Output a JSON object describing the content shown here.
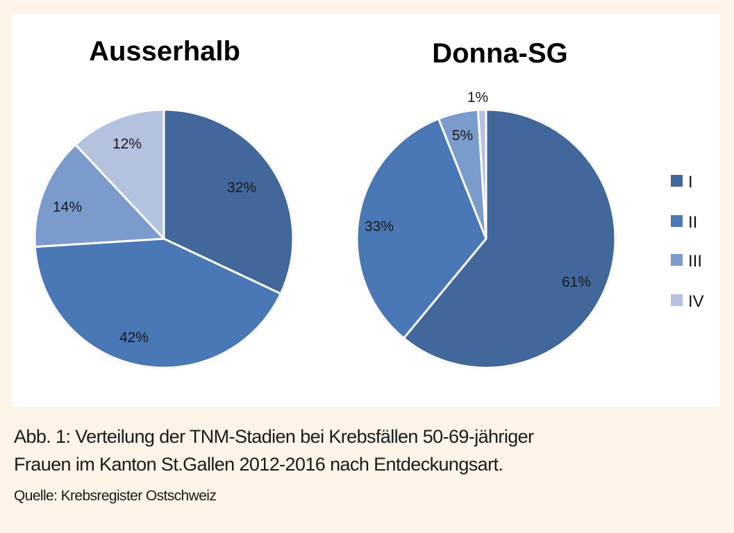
{
  "chart_data": [
    {
      "type": "pie",
      "title": "Ausserhalb",
      "categories": [
        "I",
        "II",
        "III",
        "IV"
      ],
      "values": [
        32,
        42,
        14,
        12
      ],
      "labels": [
        "32%",
        "42%",
        "14%",
        "12%"
      ],
      "unit": "%",
      "start_angle": "12 o'clock",
      "direction": "clockwise"
    },
    {
      "type": "pie",
      "title": "Donna-SG",
      "categories": [
        "I",
        "II",
        "III",
        "IV"
      ],
      "values": [
        61,
        33,
        5,
        1
      ],
      "labels": [
        "61%",
        "33%",
        "5%",
        "1%"
      ],
      "unit": "%",
      "start_angle": "12 o'clock",
      "direction": "clockwise"
    }
  ],
  "legend": {
    "placement": "right",
    "items": [
      {
        "label": "I",
        "color": "#41679b"
      },
      {
        "label": "II",
        "color": "#4a77b5"
      },
      {
        "label": "III",
        "color": "#7b9bcd"
      },
      {
        "label": "IV",
        "color": "#b4c2e0"
      }
    ]
  },
  "caption": {
    "line1": "Abb. 1: Verteilung der TNM-Stadien bei Krebsfällen 50-69-jähriger",
    "line2": "Frauen im Kanton St.Gallen 2012-2016 nach Entdeckungsart.",
    "source": "Quelle: Krebsregister Ostschweiz"
  },
  "colors": {
    "background": "#fdf3e8",
    "panel": "#ffffff"
  }
}
